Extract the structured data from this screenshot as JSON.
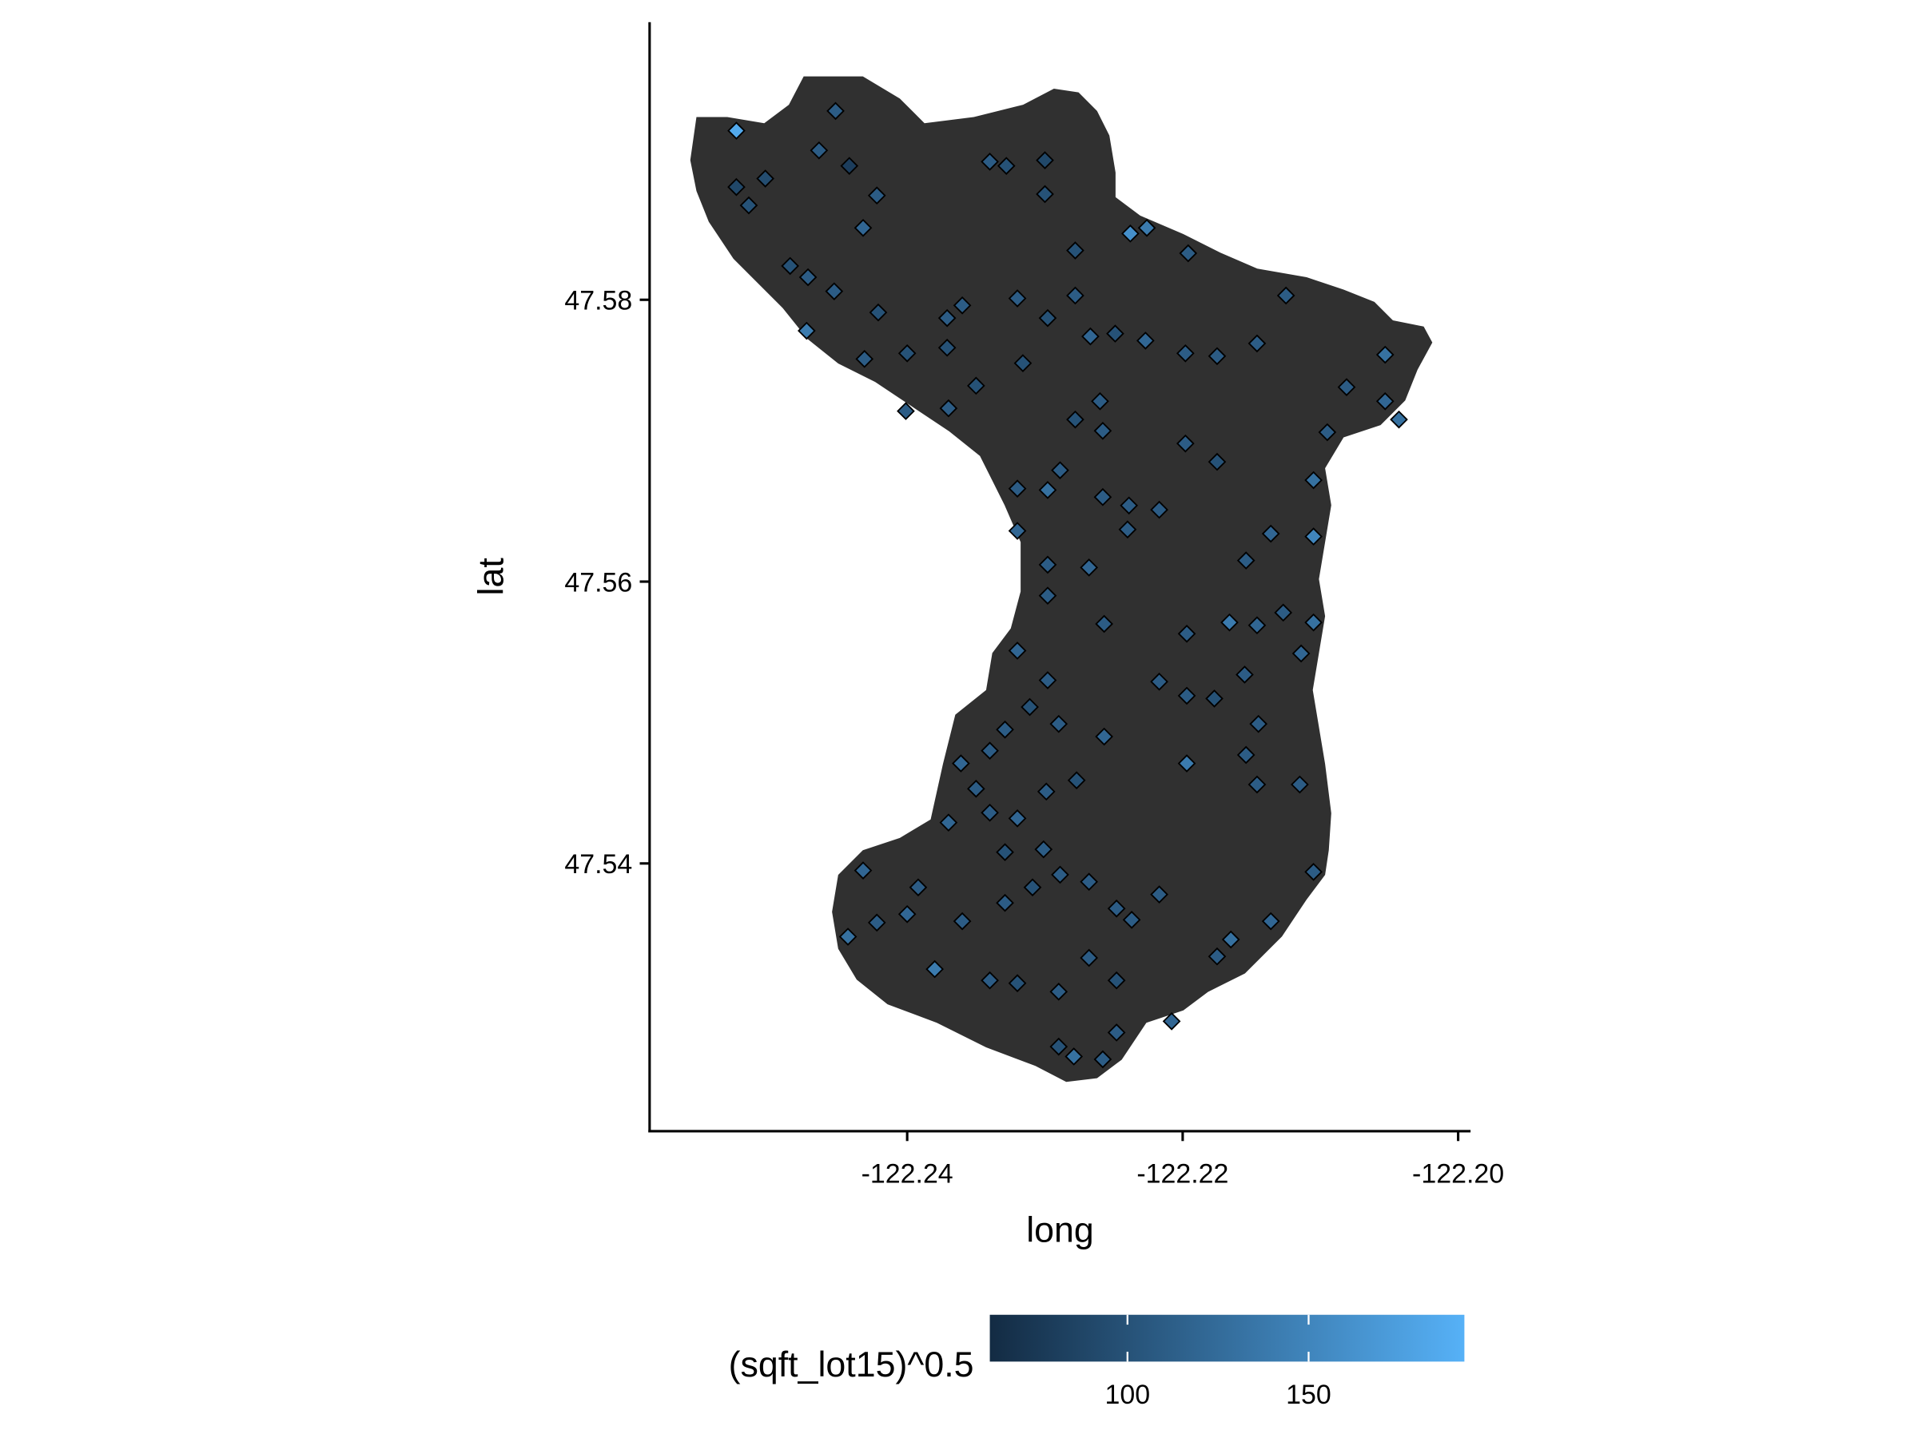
{
  "chart_data": {
    "type": "scatter",
    "x_label": "long",
    "y_label": "lat",
    "xlim": [
      -122.2587,
      -122.1991
    ],
    "ylim": [
      47.521,
      47.5997
    ],
    "xticks": [
      -122.24,
      -122.22,
      {
        "value": -122.2,
        "label": "-122.20"
      }
    ],
    "yticks": [
      47.54,
      47.56,
      47.58
    ],
    "x": [
      -122.2524,
      -122.2452,
      -122.2524,
      -122.2503,
      -122.2515,
      -122.2464,
      -122.2442,
      -122.2422,
      -122.2432,
      -122.2485,
      -122.2472,
      -122.2453,
      -122.2473,
      -122.2421,
      -122.2431,
      -122.2401,
      -122.24,
      -122.237,
      -122.235,
      -122.236,
      -122.2371,
      -122.2371,
      -122.234,
      -122.2328,
      -122.23,
      -122.23,
      -122.232,
      -122.2298,
      -122.2278,
      -122.2278,
      -122.2238,
      -122.2226,
      -122.2196,
      -122.2227,
      -122.2249,
      -122.2267,
      -122.2316,
      -122.226,
      -122.2278,
      -122.2258,
      -122.2289,
      -122.232,
      -122.2298,
      -122.2258,
      -122.232,
      -122.2298,
      -122.2268,
      -122.2298,
      -122.2257,
      -122.2239,
      -122.2217,
      -122.2198,
      -122.2175,
      -122.2125,
      -122.2146,
      -122.2198,
      -122.2175,
      -122.2053,
      -122.2043,
      -122.2053,
      -122.2095,
      -122.2081,
      -122.2105,
      -122.2105,
      -122.2136,
      -122.2154,
      -122.2146,
      -122.2114,
      -122.2105,
      -122.2166,
      -122.2197,
      -122.2217,
      -122.2197,
      -122.2177,
      -122.2197,
      -122.2145,
      -122.2154,
      -122.2146,
      -122.2115,
      -122.2105,
      -122.2136,
      -122.2165,
      -122.2175,
      -122.2208,
      -122.2217,
      -122.2237,
      -122.2248,
      -122.2248,
      -122.2279,
      -122.2258,
      -122.229,
      -122.229,
      -122.2268,
      -122.2248,
      -122.2268,
      -122.2289,
      -122.2309,
      -122.2329,
      -122.234,
      -122.232,
      -122.236,
      -122.2392,
      -122.238,
      -122.24,
      -122.2432,
      -122.2422,
      -122.2443,
      -122.237,
      -122.235,
      -122.234,
      -122.232,
      -122.2361,
      -122.234,
      -122.2329,
      -122.2311,
      -122.229,
      -122.2298,
      -122.232,
      -122.2257,
      -122.2277,
      -122.2299,
      -122.2301,
      -122.2329,
      -122.2155,
      -122.2127,
      -122.224
    ],
    "y": [
      47.592,
      47.5934,
      47.588,
      47.5886,
      47.5867,
      47.5906,
      47.5895,
      47.5874,
      47.5851,
      47.5824,
      47.5816,
      47.5806,
      47.5778,
      47.5791,
      47.5758,
      47.5721,
      47.5762,
      47.5723,
      47.5739,
      47.5796,
      47.5787,
      47.5766,
      47.5898,
      47.5895,
      47.5899,
      47.5875,
      47.5801,
      47.5787,
      47.5803,
      47.5835,
      47.5847,
      47.5851,
      47.5833,
      47.5771,
      47.5776,
      47.5774,
      47.5755,
      47.5728,
      47.5715,
      47.5707,
      47.5679,
      47.5666,
      47.5665,
      47.566,
      47.5636,
      47.5612,
      47.561,
      47.559,
      47.557,
      47.5654,
      47.5651,
      47.5698,
      47.5685,
      47.5803,
      47.5769,
      47.5762,
      47.576,
      47.5761,
      47.5715,
      47.5728,
      47.5706,
      47.5738,
      47.5672,
      47.5632,
      47.5634,
      47.5615,
      47.5569,
      47.5549,
      47.5571,
      47.5571,
      47.5563,
      47.5529,
      47.5519,
      47.5517,
      47.5471,
      47.5499,
      47.5477,
      47.5456,
      47.5456,
      47.5394,
      47.5359,
      47.5346,
      47.5334,
      47.5288,
      47.5378,
      47.536,
      47.5317,
      47.528,
      47.5263,
      47.5261,
      47.527,
      47.5309,
      47.5333,
      47.5368,
      47.5387,
      47.5392,
      47.5383,
      47.5372,
      47.5317,
      47.5315,
      47.5359,
      47.5383,
      47.5325,
      47.5364,
      47.5395,
      47.5358,
      47.5348,
      47.5429,
      47.5453,
      47.5436,
      47.5432,
      47.5471,
      47.548,
      47.5495,
      47.5511,
      47.5499,
      47.553,
      47.5551,
      47.549,
      47.5459,
      47.5451,
      47.541,
      47.5408,
      47.5534,
      47.5578,
      47.5637
    ],
    "color_values": [
      185,
      110,
      90,
      95,
      100,
      110,
      80,
      110,
      120,
      100,
      110,
      110,
      140,
      100,
      110,
      110,
      100,
      110,
      100,
      110,
      110,
      100,
      110,
      100,
      90,
      100,
      110,
      100,
      110,
      100,
      160,
      140,
      110,
      120,
      100,
      120,
      100,
      110,
      100,
      110,
      110,
      110,
      130,
      110,
      120,
      110,
      120,
      110,
      110,
      110,
      110,
      110,
      100,
      110,
      110,
      110,
      110,
      130,
      130,
      120,
      110,
      110,
      130,
      150,
      120,
      110,
      120,
      120,
      130,
      140,
      110,
      110,
      110,
      100,
      140,
      110,
      110,
      110,
      110,
      110,
      120,
      130,
      110,
      120,
      110,
      110,
      100,
      110,
      130,
      110,
      100,
      110,
      110,
      110,
      110,
      110,
      100,
      110,
      110,
      100,
      110,
      110,
      140,
      120,
      120,
      110,
      130,
      120,
      110,
      110,
      120,
      120,
      110,
      110,
      100,
      110,
      110,
      120,
      120,
      100,
      110,
      110,
      100,
      110,
      110,
      110
    ],
    "colorbar": {
      "title": "(sqft_lot15)^0.5",
      "limits": [
        62,
        193
      ],
      "ticks": [
        100,
        150
      ],
      "low": "#132B43",
      "high": "#56B1F7"
    }
  }
}
